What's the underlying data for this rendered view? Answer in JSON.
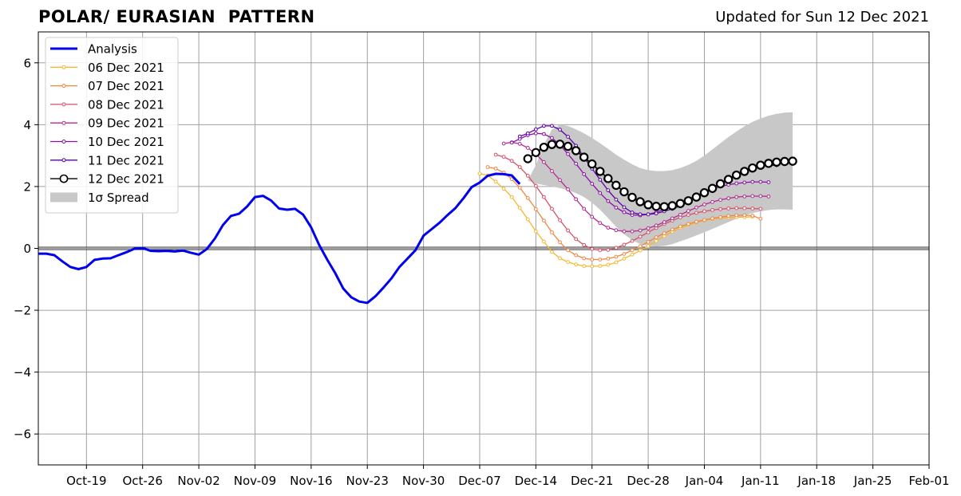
{
  "chart_data": {
    "type": "line",
    "title": "POLAR/ EURASIAN  PATTERN",
    "subtitle": "Updated for Sun 12 Dec 2021",
    "ylim": [
      -7,
      7
    ],
    "xlim": [
      "2021-10-13",
      "2022-02-01"
    ],
    "yticks": [
      -6,
      -4,
      -2,
      0,
      2,
      4,
      6
    ],
    "ytick_labels": [
      "−6",
      "−4",
      "−2",
      "0",
      "2",
      "4",
      "6"
    ],
    "xticks": [
      "2021-10-19",
      "2021-10-26",
      "2021-11-02",
      "2021-11-09",
      "2021-11-16",
      "2021-11-23",
      "2021-11-30",
      "2021-12-07",
      "2021-12-14",
      "2021-12-21",
      "2021-12-28",
      "2022-01-04",
      "2022-01-11",
      "2022-01-18",
      "2022-01-25",
      "2022-02-01"
    ],
    "xtick_labels": [
      "Oct-19",
      "Oct-26",
      "Nov-02",
      "Nov-09",
      "Nov-16",
      "Nov-23",
      "Nov-30",
      "Dec-07",
      "Dec-14",
      "Dec-21",
      "Dec-28",
      "Jan-04",
      "Jan-11",
      "Jan-18",
      "Jan-25",
      "Feb-01"
    ],
    "grid": true,
    "legend_position": "top-left",
    "legend": [
      "Analysis",
      "06 Dec 2021",
      "07 Dec 2021",
      "08 Dec 2021",
      "09 Dec 2021",
      "10 Dec 2021",
      "11 Dec 2021",
      "12 Dec 2021",
      "1σ Spread"
    ],
    "analysis": {
      "name": "Analysis",
      "color": "#0000ee",
      "start": "2021-10-13",
      "values": [
        -0.17,
        -0.17,
        -0.22,
        -0.42,
        -0.6,
        -0.67,
        -0.6,
        -0.37,
        -0.33,
        -0.32,
        -0.22,
        -0.12,
        -0.01,
        0.01,
        -0.08,
        -0.09,
        -0.08,
        -0.1,
        -0.07,
        -0.14,
        -0.2,
        -0.02,
        0.32,
        0.75,
        1.05,
        1.12,
        1.35,
        1.66,
        1.7,
        1.55,
        1.29,
        1.25,
        1.28,
        1.09,
        0.68,
        0.11,
        -0.36,
        -0.8,
        -1.3,
        -1.58,
        -1.72,
        -1.76,
        -1.55,
        -1.27,
        -0.97,
        -0.6,
        -0.33,
        -0.06,
        0.41,
        0.62,
        0.83,
        1.08,
        1.31,
        1.63,
        1.98,
        2.13,
        2.35,
        2.41,
        2.4,
        2.36,
        2.08
      ]
    },
    "forecasts": [
      {
        "name": "06 Dec 2021",
        "color": "#f5b731",
        "start": "2021-12-07",
        "values": [
          2.42,
          2.36,
          2.16,
          1.93,
          1.66,
          1.31,
          0.94,
          0.55,
          0.22,
          -0.11,
          -0.32,
          -0.44,
          -0.52,
          -0.57,
          -0.58,
          -0.57,
          -0.53,
          -0.45,
          -0.33,
          -0.2,
          -0.07,
          0.08,
          0.24,
          0.4,
          0.54,
          0.66,
          0.76,
          0.84,
          0.9,
          0.95,
          0.98,
          1.0,
          1.01,
          1.01,
          1.02
        ]
      },
      {
        "name": "07 Dec 2021",
        "color": "#ef8644",
        "start": "2021-12-08",
        "values": [
          2.63,
          2.58,
          2.45,
          2.24,
          1.96,
          1.63,
          1.27,
          0.9,
          0.52,
          0.2,
          -0.06,
          -0.22,
          -0.32,
          -0.36,
          -0.36,
          -0.33,
          -0.27,
          -0.18,
          -0.06,
          0.07,
          0.21,
          0.36,
          0.49,
          0.61,
          0.71,
          0.79,
          0.86,
          0.92,
          0.97,
          1.01,
          1.05,
          1.07,
          1.07,
          1.06,
          0.96
        ]
      },
      {
        "name": "08 Dec 2021",
        "color": "#d6506a",
        "start": "2021-12-09",
        "values": [
          3.03,
          2.96,
          2.83,
          2.63,
          2.35,
          2.02,
          1.66,
          1.28,
          0.91,
          0.58,
          0.3,
          0.11,
          -0.02,
          -0.06,
          -0.05,
          0.02,
          0.12,
          0.24,
          0.38,
          0.52,
          0.66,
          0.79,
          0.9,
          1.0,
          1.08,
          1.15,
          1.2,
          1.24,
          1.27,
          1.29,
          1.3,
          1.3,
          1.29,
          1.28
        ]
      },
      {
        "name": "09 Dec 2021",
        "color": "#b22b8f",
        "start": "2021-12-10",
        "values": [
          3.39,
          3.43,
          3.38,
          3.25,
          3.05,
          2.79,
          2.5,
          2.21,
          1.91,
          1.59,
          1.28,
          1.02,
          0.82,
          0.67,
          0.59,
          0.55,
          0.55,
          0.58,
          0.65,
          0.74,
          0.85,
          0.97,
          1.09,
          1.21,
          1.32,
          1.42,
          1.5,
          1.57,
          1.62,
          1.66,
          1.68,
          1.69,
          1.69,
          1.68
        ]
      },
      {
        "name": "10 Dec 2021",
        "color": "#8c10a8",
        "start": "2021-12-11",
        "values": [
          3.42,
          3.54,
          3.66,
          3.72,
          3.7,
          3.57,
          3.35,
          3.05,
          2.74,
          2.4,
          2.09,
          1.79,
          1.53,
          1.32,
          1.17,
          1.08,
          1.07,
          1.1,
          1.17,
          1.26,
          1.37,
          1.49,
          1.6,
          1.72,
          1.82,
          1.92,
          2.0,
          2.06,
          2.1,
          2.13,
          2.15,
          2.15,
          2.14
        ]
      },
      {
        "name": "11 Dec 2021",
        "color": "#5c01a5",
        "start": "2021-12-12",
        "values": [
          3.62,
          3.72,
          3.85,
          3.96,
          3.96,
          3.84,
          3.61,
          3.32,
          2.95,
          2.58,
          2.22,
          1.88,
          1.58,
          1.33,
          1.16,
          1.1,
          1.1,
          1.13,
          1.2,
          1.28,
          1.37,
          1.49,
          1.64,
          1.8,
          1.96,
          2.12,
          2.26,
          2.4,
          2.51,
          2.6,
          2.66,
          2.68,
          2.69
        ]
      },
      {
        "name": "12 Dec 2021",
        "color": "#000000",
        "start": "2021-12-13",
        "values": [
          2.9,
          3.1,
          3.27,
          3.36,
          3.37,
          3.3,
          3.16,
          2.95,
          2.73,
          2.49,
          2.26,
          2.04,
          1.83,
          1.65,
          1.51,
          1.41,
          1.36,
          1.35,
          1.38,
          1.45,
          1.54,
          1.66,
          1.8,
          1.94,
          2.09,
          2.23,
          2.37,
          2.49,
          2.6,
          2.69,
          2.75,
          2.79,
          2.81,
          2.82
        ]
      }
    ],
    "spread": {
      "name": "1σ Spread",
      "color": "#c8c8c8",
      "start": "2021-12-13",
      "upper": [
        2.2,
        2.7,
        3.35,
        3.85,
        4.0,
        3.96,
        3.85,
        3.72,
        3.57,
        3.4,
        3.22,
        3.03,
        2.87,
        2.72,
        2.6,
        2.53,
        2.5,
        2.5,
        2.53,
        2.6,
        2.7,
        2.83,
        3.0,
        3.2,
        3.4,
        3.6,
        3.78,
        3.95,
        4.09,
        4.2,
        4.29,
        4.35,
        4.39,
        4.4
      ],
      "lower": [
        2.2,
        2.1,
        2.05,
        2.0,
        1.95,
        1.88,
        1.79,
        1.66,
        1.48,
        1.25,
        0.98,
        0.7,
        0.46,
        0.27,
        0.14,
        0.08,
        0.06,
        0.08,
        0.14,
        0.23,
        0.32,
        0.42,
        0.52,
        0.63,
        0.74,
        0.85,
        0.96,
        1.06,
        1.14,
        1.2,
        1.24,
        1.26,
        1.26,
        1.25
      ]
    }
  }
}
